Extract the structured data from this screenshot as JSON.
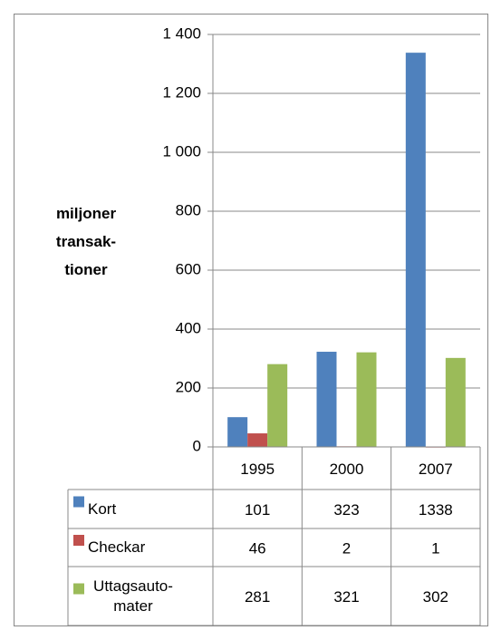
{
  "chart_data": {
    "type": "bar",
    "ylabel": "miljoner transak-tioner",
    "categories": [
      "1995",
      "2000",
      "2007"
    ],
    "series": [
      {
        "name": "Kort",
        "color": "#4f81bd",
        "values": [
          101,
          323,
          1338
        ]
      },
      {
        "name": "Checkar",
        "color": "#c0504d",
        "values": [
          46,
          2,
          1
        ]
      },
      {
        "name": "Uttagsauto-mater",
        "color": "#9bbb59",
        "values": [
          281,
          321,
          302
        ]
      }
    ],
    "ylim": [
      0,
      1400
    ],
    "yticks": [
      0,
      200,
      400,
      600,
      800,
      {
        "value": 1000,
        "label": "1 000"
      },
      {
        "value": 1200,
        "label": "1 200"
      },
      {
        "value": 1400,
        "label": "1 400"
      }
    ],
    "grid": true
  }
}
